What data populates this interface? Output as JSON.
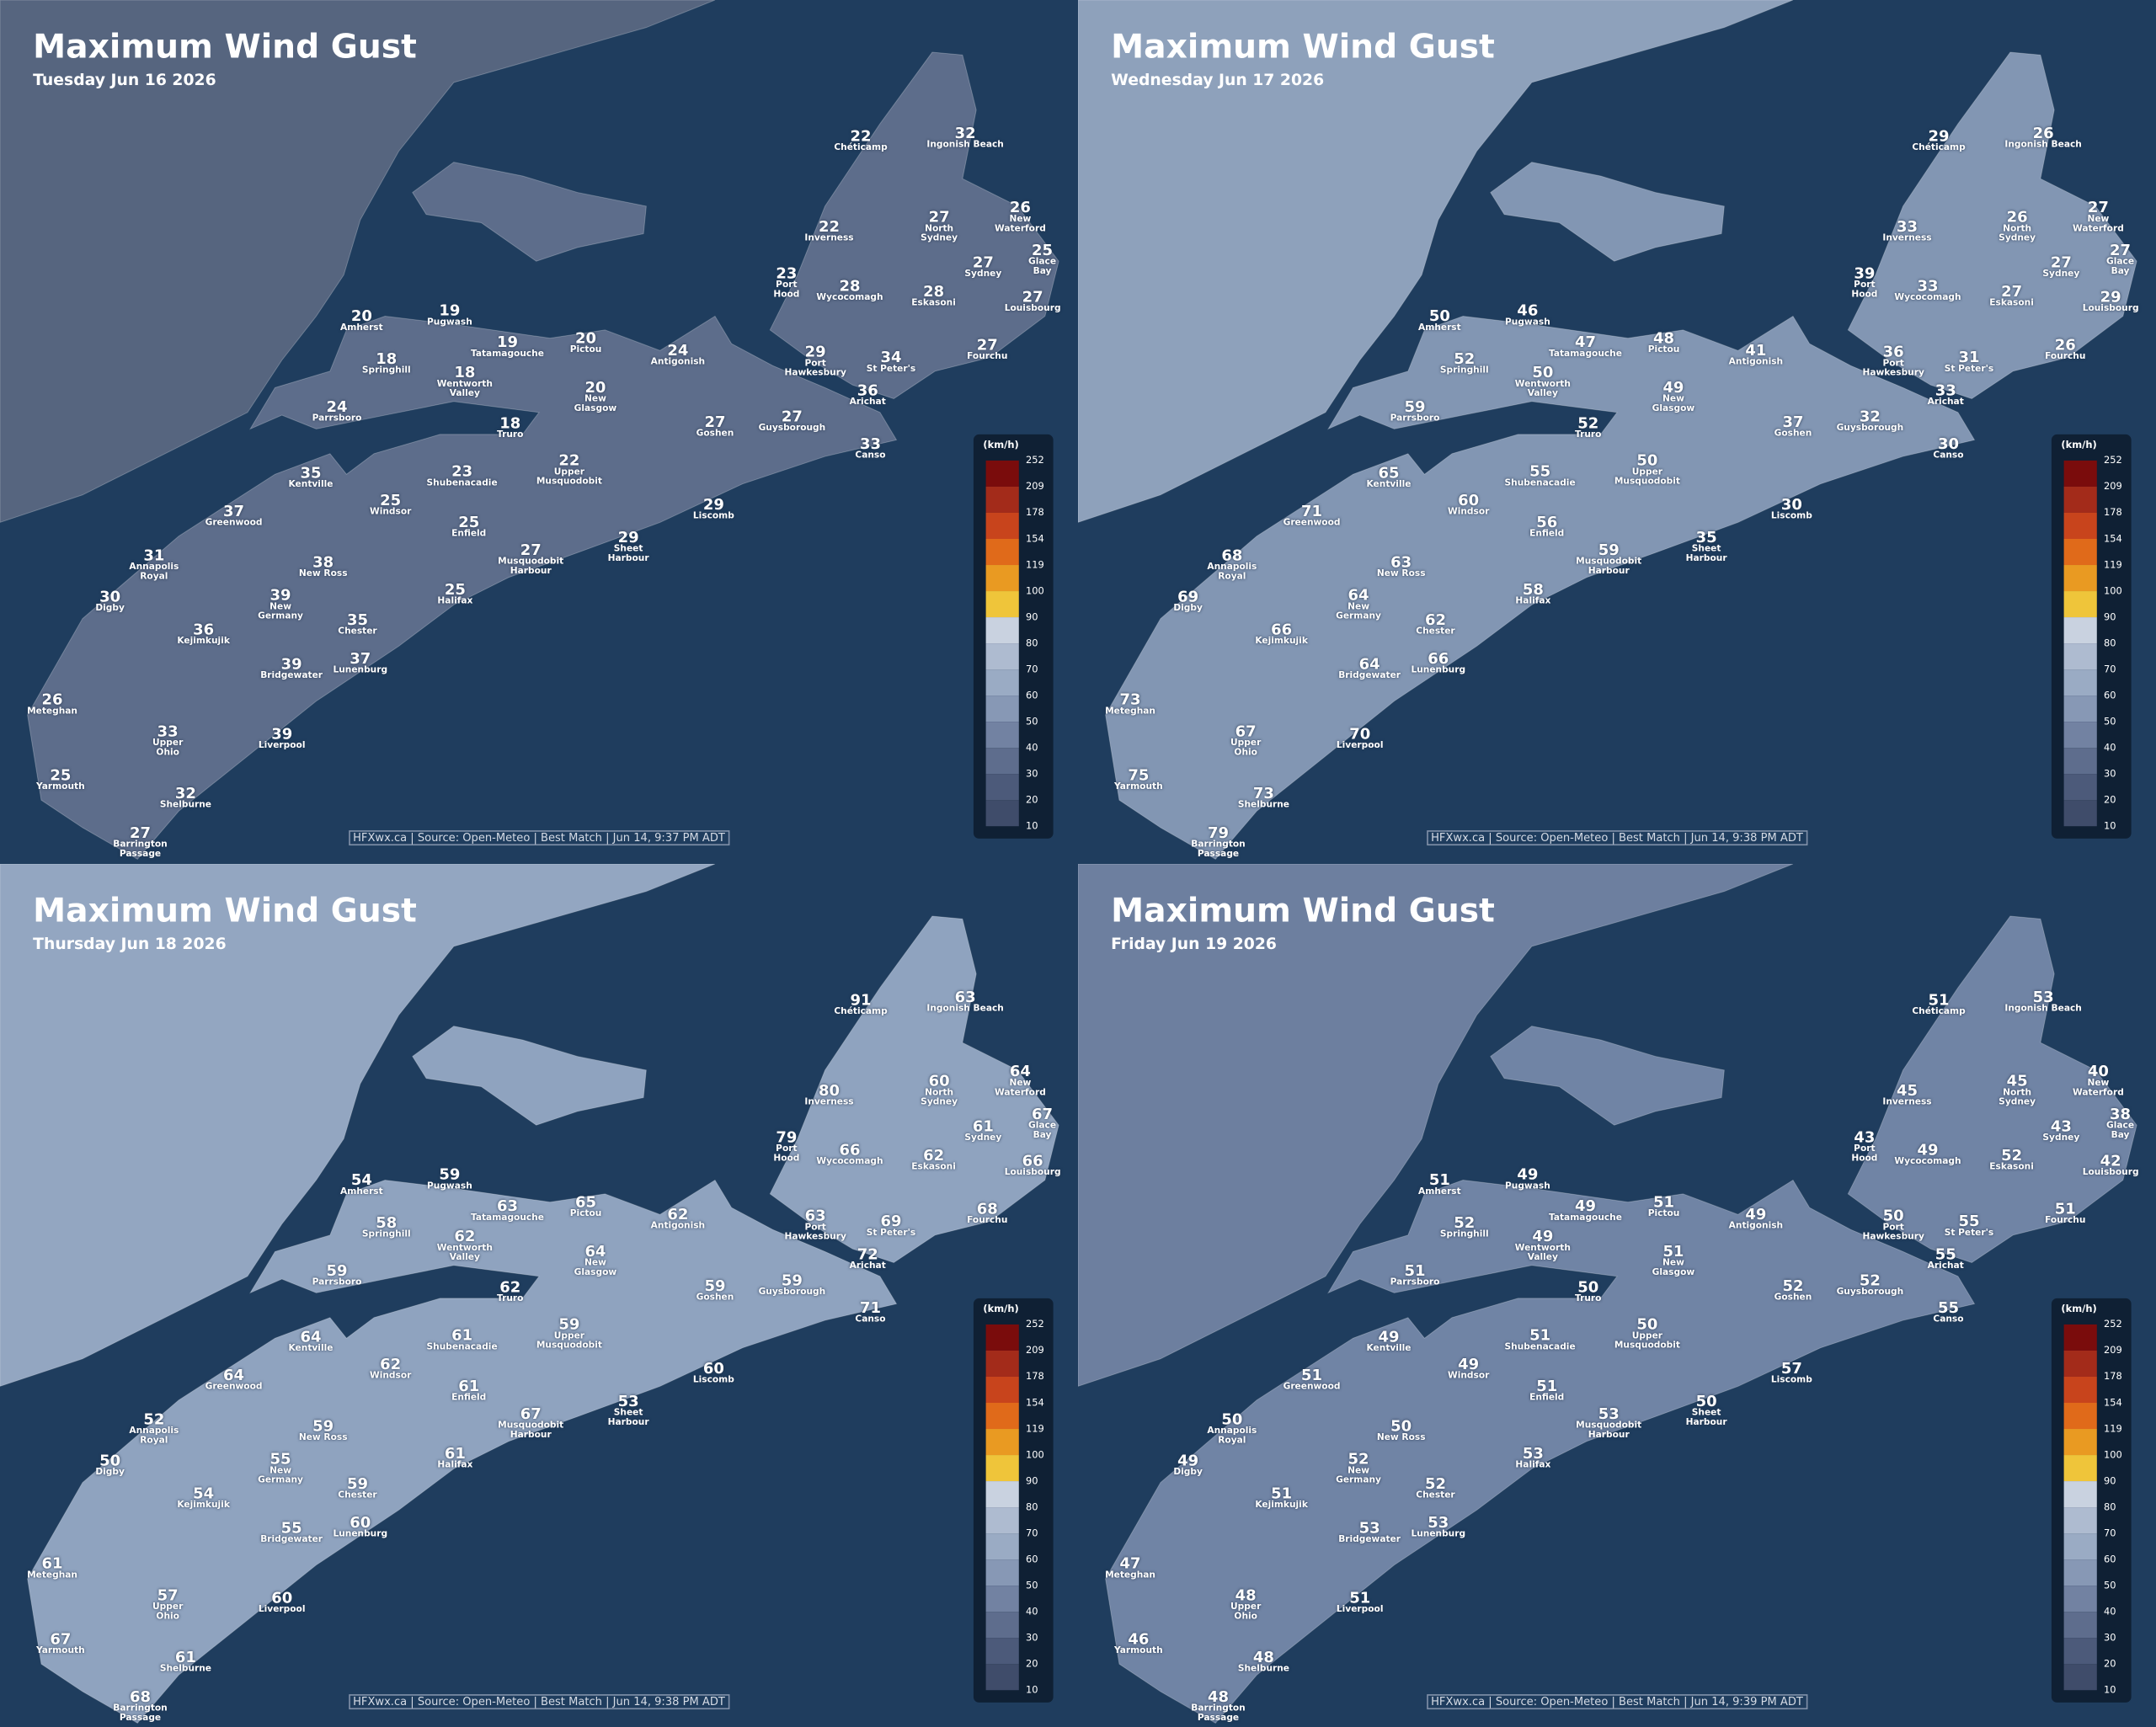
{
  "legend": {
    "unit": "(km/h)",
    "ticks": [
      252,
      209,
      178,
      154,
      119,
      100,
      90,
      80,
      70,
      60,
      50,
      40,
      30,
      20,
      10
    ]
  },
  "locations": [
    "Chéticamp",
    "Ingonish Beach",
    "Inverness",
    "North\nSydney",
    "New\nWaterford",
    "Glace\nBay",
    "Sydney",
    "Louisbourg",
    "Port\nHood",
    "Wycocomagh",
    "Eskasoni",
    "Amherst",
    "Pugwash",
    "Tatamagouche",
    "Pictou",
    "Springhill",
    "Wentworth\nValley",
    "Antigonish",
    "Port\nHawkesbury",
    "St Peter's",
    "Fourchu",
    "New\nGlasgow",
    "Arichat",
    "Parrsboro",
    "Truro",
    "Goshen",
    "Guysborough",
    "Canso",
    "Kentville",
    "Shubenacadie",
    "Upper\nMusquodobit",
    "Windsor",
    "Greenwood",
    "Enfield",
    "Liscomb",
    "Annapolis\nRoyal",
    "Musquodobit\nHarbour",
    "Sheet\nHarbour",
    "New Ross",
    "Digby",
    "New\nGermany",
    "Halifax",
    "Chester",
    "Kejimkujik",
    "Lunenburg",
    "Bridgewater",
    "Meteghan",
    "Upper\nOhio",
    "Liverpool",
    "Yarmouth",
    "Shelburne",
    "Barrington\nPassage"
  ],
  "panels": [
    {
      "title": "Maximum Wind Gust",
      "date": "Tuesday Jun 16 2026",
      "source": "HFXwx.ca | Source: Open-Meteo | Best Match | Jun 14, 9:37 PM ADT",
      "values": [
        22,
        32,
        22,
        27,
        26,
        25,
        27,
        27,
        23,
        28,
        28,
        20,
        19,
        19,
        20,
        18,
        18,
        24,
        29,
        34,
        27,
        20,
        36,
        24,
        18,
        27,
        27,
        33,
        35,
        23,
        22,
        25,
        37,
        25,
        29,
        31,
        27,
        29,
        38,
        30,
        39,
        25,
        35,
        36,
        37,
        39,
        26,
        33,
        39,
        25,
        32,
        27
      ]
    },
    {
      "title": "Maximum Wind Gust",
      "date": "Wednesday Jun 17 2026",
      "source": "HFXwx.ca | Source: Open-Meteo | Best Match | Jun 14, 9:38 PM ADT",
      "values": [
        29,
        26,
        33,
        26,
        27,
        27,
        27,
        29,
        39,
        33,
        27,
        50,
        46,
        47,
        48,
        52,
        50,
        41,
        36,
        31,
        26,
        49,
        33,
        59,
        52,
        37,
        32,
        30,
        65,
        55,
        50,
        60,
        71,
        56,
        30,
        68,
        59,
        35,
        63,
        69,
        64,
        58,
        62,
        66,
        66,
        64,
        73,
        67,
        70,
        75,
        73,
        79
      ]
    },
    {
      "title": "Maximum Wind Gust",
      "date": "Thursday Jun 18 2026",
      "source": "HFXwx.ca | Source: Open-Meteo | Best Match | Jun 14, 9:38 PM ADT",
      "values": [
        91,
        63,
        80,
        60,
        64,
        67,
        61,
        66,
        79,
        66,
        62,
        54,
        59,
        63,
        65,
        58,
        62,
        62,
        63,
        69,
        68,
        64,
        72,
        59,
        62,
        59,
        59,
        71,
        64,
        61,
        59,
        62,
        64,
        61,
        60,
        52,
        67,
        53,
        59,
        50,
        55,
        61,
        59,
        54,
        60,
        55,
        61,
        57,
        60,
        67,
        61,
        68
      ]
    },
    {
      "title": "Maximum Wind Gust",
      "date": "Friday Jun 19 2026",
      "source": "HFXwx.ca | Source: Open-Meteo | Best Match | Jun 14, 9:39 PM ADT",
      "values": [
        51,
        53,
        45,
        45,
        40,
        38,
        43,
        42,
        43,
        49,
        52,
        51,
        49,
        49,
        51,
        52,
        49,
        49,
        50,
        55,
        51,
        51,
        55,
        51,
        50,
        52,
        52,
        55,
        49,
        51,
        50,
        49,
        51,
        51,
        57,
        50,
        53,
        50,
        50,
        49,
        52,
        53,
        52,
        51,
        53,
        53,
        47,
        48,
        51,
        46,
        48,
        48
      ]
    }
  ]
}
